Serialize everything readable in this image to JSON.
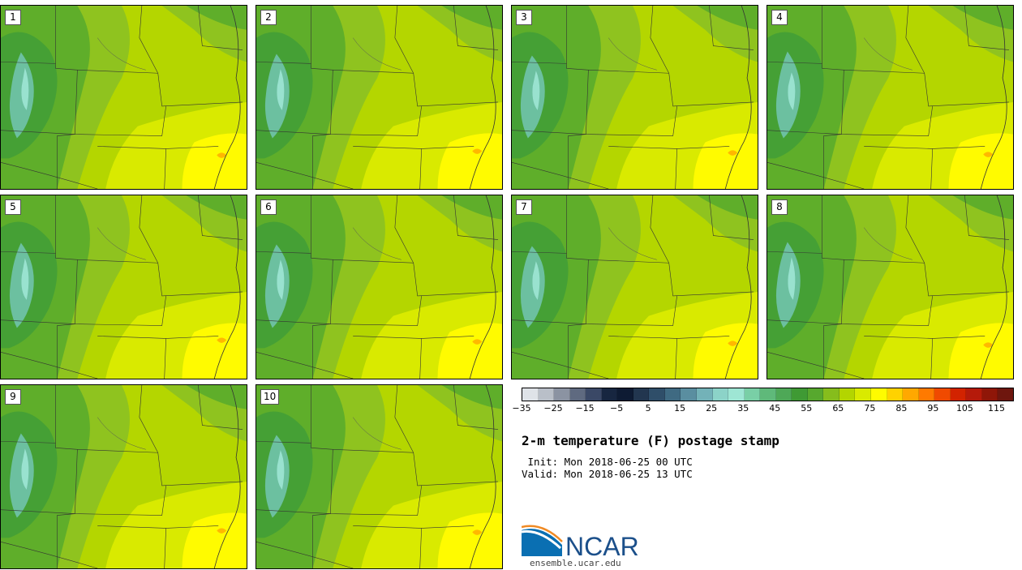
{
  "panels": [
    {
      "label": "1"
    },
    {
      "label": "2"
    },
    {
      "label": "3"
    },
    {
      "label": "4"
    },
    {
      "label": "5"
    },
    {
      "label": "6"
    },
    {
      "label": "7"
    },
    {
      "label": "8"
    },
    {
      "label": "9"
    },
    {
      "label": "10"
    }
  ],
  "colorbar": {
    "colors": [
      "#dfe3e8",
      "#b9bfc8",
      "#8b93a2",
      "#5f6a80",
      "#3a4866",
      "#172640",
      "#0e1b33",
      "#22364f",
      "#2f4e69",
      "#3f6a82",
      "#5a8ea0",
      "#73b2b8",
      "#8cd3c8",
      "#9ee6d4",
      "#79cfa6",
      "#5fb97a",
      "#4ea857",
      "#3f9a34",
      "#57a82e",
      "#86bd1c",
      "#b3d500",
      "#d9ea00",
      "#fffb00",
      "#ffd200",
      "#ffa800",
      "#ff7a00",
      "#f04a00",
      "#d22300",
      "#b51a0a",
      "#8f1608",
      "#6e160e"
    ],
    "ticks": [
      "−35",
      "−25",
      "−15",
      "−5",
      "5",
      "15",
      "25",
      "35",
      "45",
      "55",
      "65",
      "75",
      "85",
      "95",
      "105",
      "115"
    ]
  },
  "title": "2-m temperature (F) postage stamp",
  "init": " Init: Mon 2018-06-25 00 UTC",
  "valid": "Valid: Mon 2018-06-25 13 UTC",
  "logo": {
    "text": "NCAR",
    "url": "ensemble.ucar.edu"
  }
}
